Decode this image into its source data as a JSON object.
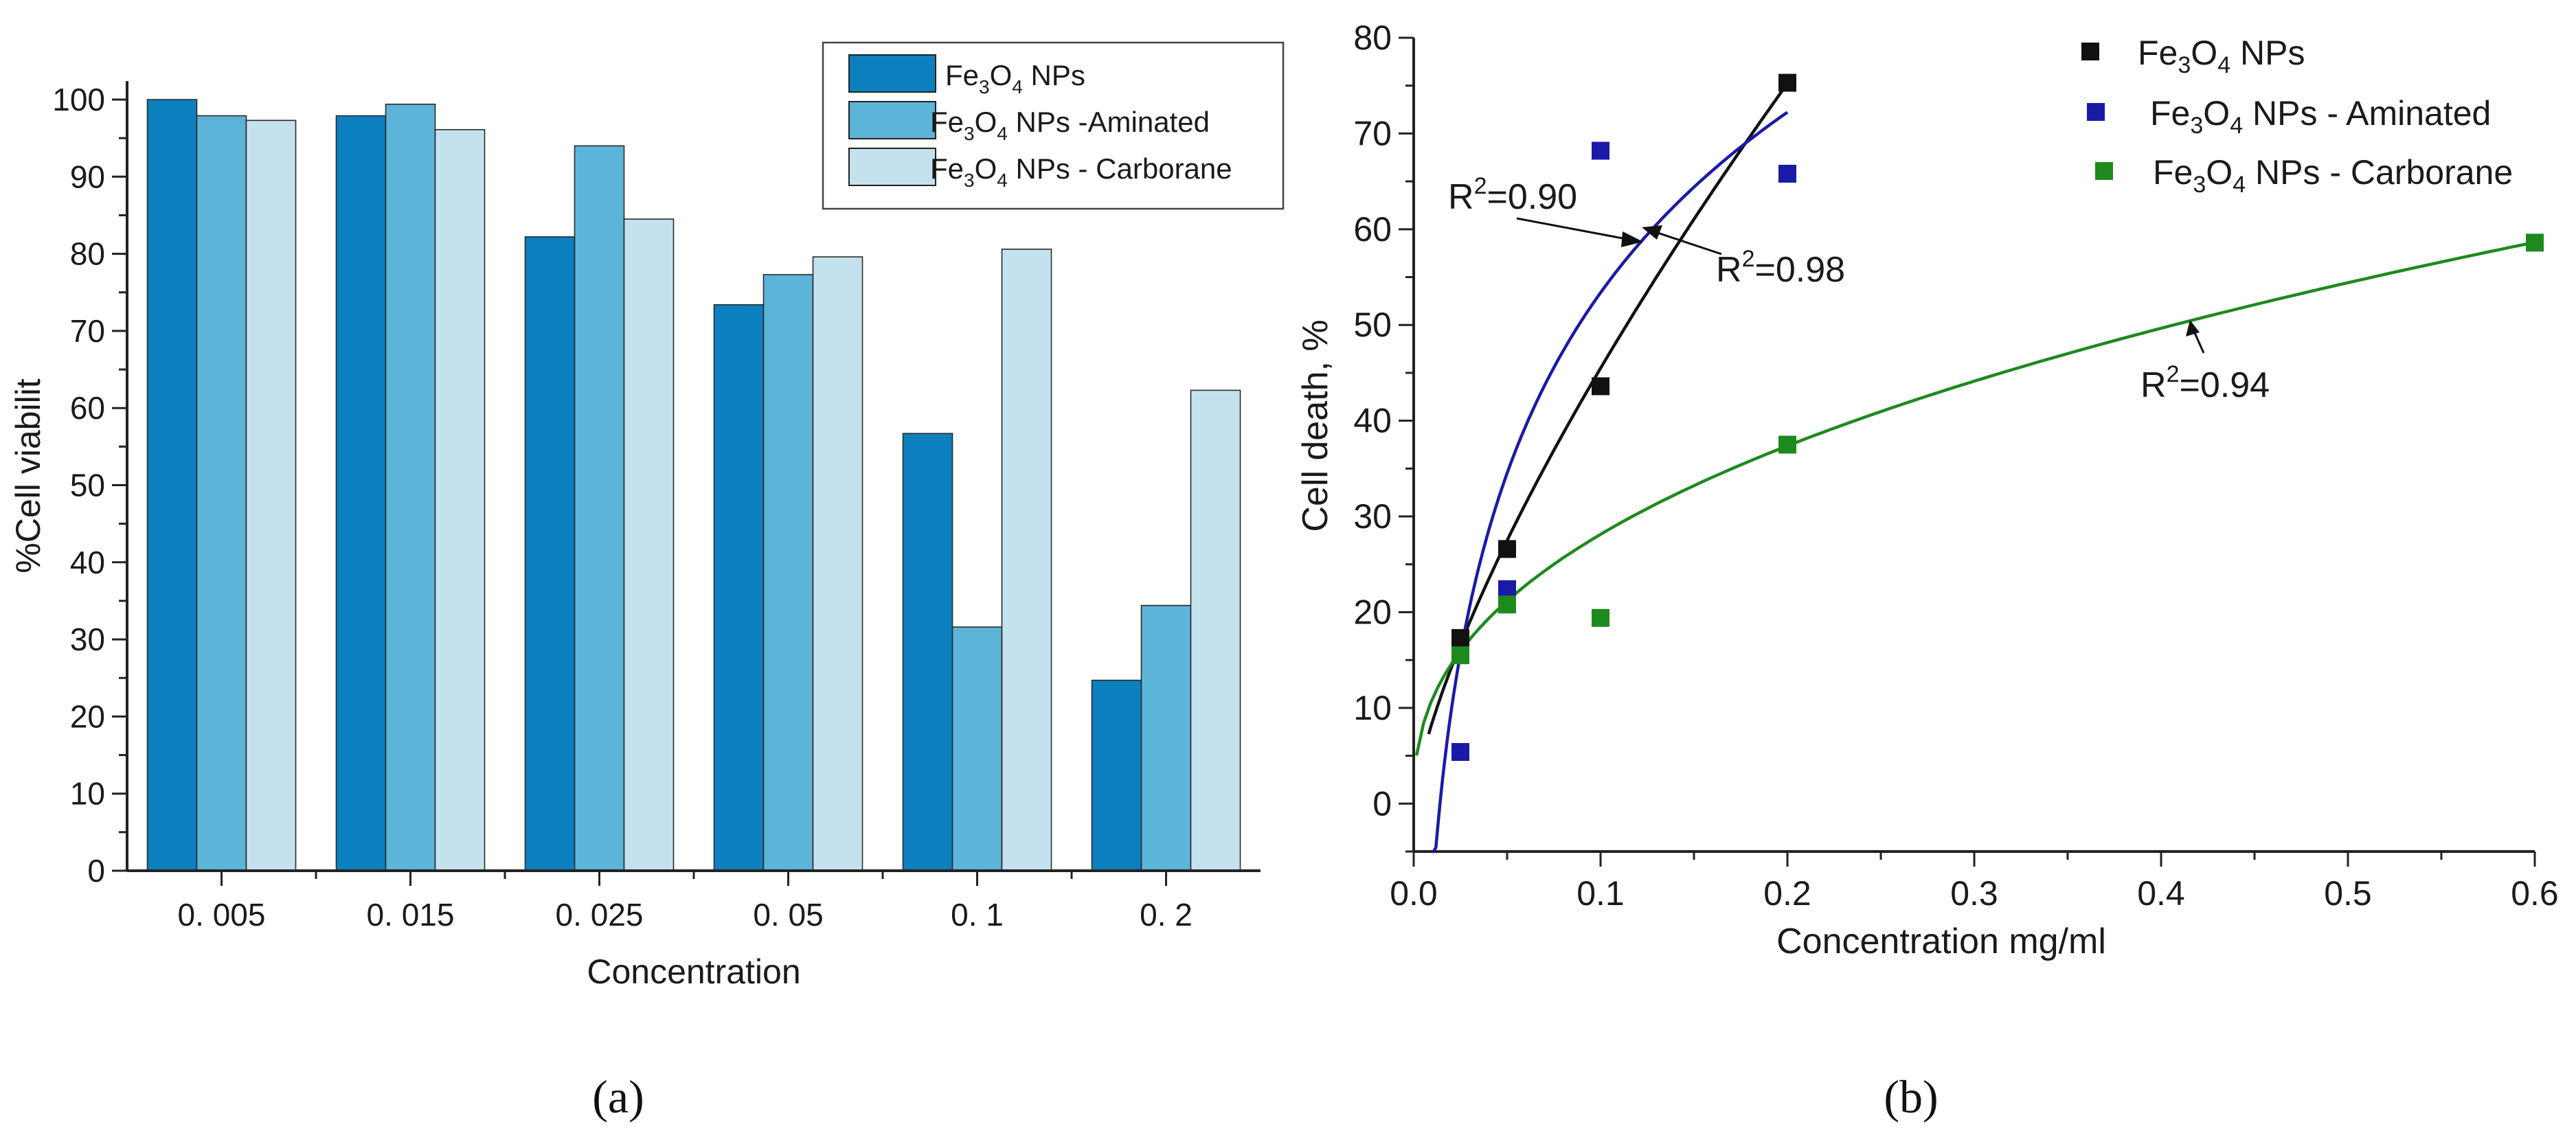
{
  "colors": {
    "fe3o4": "#0c80bf",
    "aminated": "#5db4d9",
    "carborane": "#c4e2ee",
    "b_fe3o4": "#111111",
    "b_aminated": "#1a1aa8",
    "b_carborane": "#1d8a1d"
  },
  "chart_data": [
    {
      "type": "bar",
      "panel_label": "(a)",
      "title": "",
      "xlabel": "Concentration",
      "ylabel": "%Cell viabilit",
      "ylim": [
        0,
        100
      ],
      "yticks": [
        0,
        10,
        20,
        30,
        40,
        50,
        60,
        70,
        80,
        90,
        100
      ],
      "categories": [
        "0. 005",
        "0. 015",
        "0. 025",
        "0. 05",
        "0. 1",
        "0. 2"
      ],
      "legend_position": "top-right",
      "series": [
        {
          "name": "Fe3O4 NPs",
          "label_parts": [
            "Fe",
            "3",
            "O",
            "4",
            " NPs"
          ],
          "values": [
            100,
            97.9,
            82.2,
            73.4,
            56.7,
            24.7
          ]
        },
        {
          "name": "Fe3O4 NPs -Aminated",
          "label_parts": [
            "Fe",
            "3",
            "O",
            "4",
            " NPs -Aminated"
          ],
          "values": [
            97.9,
            99.4,
            94.0,
            77.3,
            31.6,
            34.4
          ]
        },
        {
          "name": "Fe3O4 NPs - Carborane",
          "label_parts": [
            "Fe",
            "3",
            "O",
            "4",
            " NPs - Carborane"
          ],
          "values": [
            97.3,
            96.1,
            84.5,
            79.6,
            80.6,
            62.3
          ]
        }
      ]
    },
    {
      "type": "scatter",
      "panel_label": "(b)",
      "title": "",
      "xlabel": "Concentration mg/ml",
      "ylabel": "Cell death, %",
      "xlim": [
        0,
        0.6
      ],
      "ylim": [
        -5,
        80
      ],
      "xticks": [
        0.0,
        0.1,
        0.2,
        0.3,
        0.4,
        0.5,
        0.6
      ],
      "xtick_labels": [
        "0.0",
        "0.1",
        "0.2",
        "0.3",
        "0.4",
        "0.5",
        "0.6"
      ],
      "yticks": [
        0,
        10,
        20,
        30,
        40,
        50,
        60,
        70,
        80
      ],
      "legend_position": "top-right",
      "series": [
        {
          "name": "Fe3O4 NPs",
          "label_parts": [
            "Fe",
            "3",
            "O",
            "4",
            " NPs"
          ],
          "x": [
            0.025,
            0.05,
            0.1,
            0.2
          ],
          "y": [
            17.3,
            26.6,
            43.6,
            75.3
          ],
          "fit": {
            "model": "power",
            "a": 242,
            "b": 0.726,
            "x_start": 0.008,
            "x_end": 0.2
          }
        },
        {
          "name": "Fe3O4 NPs - Aminated",
          "label_parts": [
            "Fe",
            "3",
            "O",
            "4",
            " NPs - Aminated"
          ],
          "x": [
            0.025,
            0.05,
            0.1,
            0.2
          ],
          "y": [
            5.4,
            22.4,
            68.2,
            65.8
          ],
          "fit": {
            "model": "log",
            "a": 116,
            "b": 27.2,
            "x_start": 0.0095,
            "x_end": 0.2
          }
        },
        {
          "name": "Fe3O4 NPs - Carborane",
          "label_parts": [
            "Fe",
            "3",
            "O",
            "4",
            " NPs - Carborane"
          ],
          "x": [
            0.025,
            0.05,
            0.1,
            0.2,
            0.6
          ],
          "y": [
            15.5,
            20.8,
            19.4,
            37.5,
            58.6
          ],
          "fit": {
            "model": "power",
            "a": 72.3,
            "b": 0.41,
            "x_start": 0.0015,
            "x_end": 0.6
          }
        }
      ],
      "annotations": [
        {
          "series": 1,
          "base": "R",
          "sup": "2",
          "value": "=0.90"
        },
        {
          "series": 0,
          "base": "R",
          "sup": "2",
          "value": "=0.98"
        },
        {
          "series": 2,
          "base": "R",
          "sup": "2",
          "value": "=0.94"
        }
      ]
    }
  ]
}
